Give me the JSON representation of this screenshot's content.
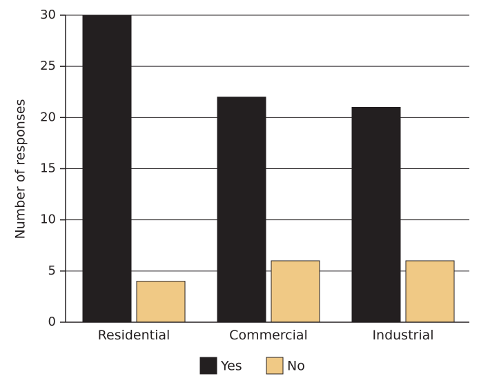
{
  "chart_data": {
    "type": "bar",
    "title": "",
    "xlabel": "",
    "ylabel": "Number of responses",
    "ylim": [
      0,
      30
    ],
    "yticks": [
      0,
      5,
      10,
      15,
      20,
      25,
      30
    ],
    "grid": true,
    "legend_position": "bottom-center",
    "categories": [
      "Residential",
      "Commercial",
      "Industrial"
    ],
    "series": [
      {
        "name": "Yes",
        "color": "#231f20",
        "values": [
          30,
          22,
          21
        ]
      },
      {
        "name": "No",
        "color": "#f0c985",
        "values": [
          4,
          6,
          6
        ]
      }
    ]
  }
}
